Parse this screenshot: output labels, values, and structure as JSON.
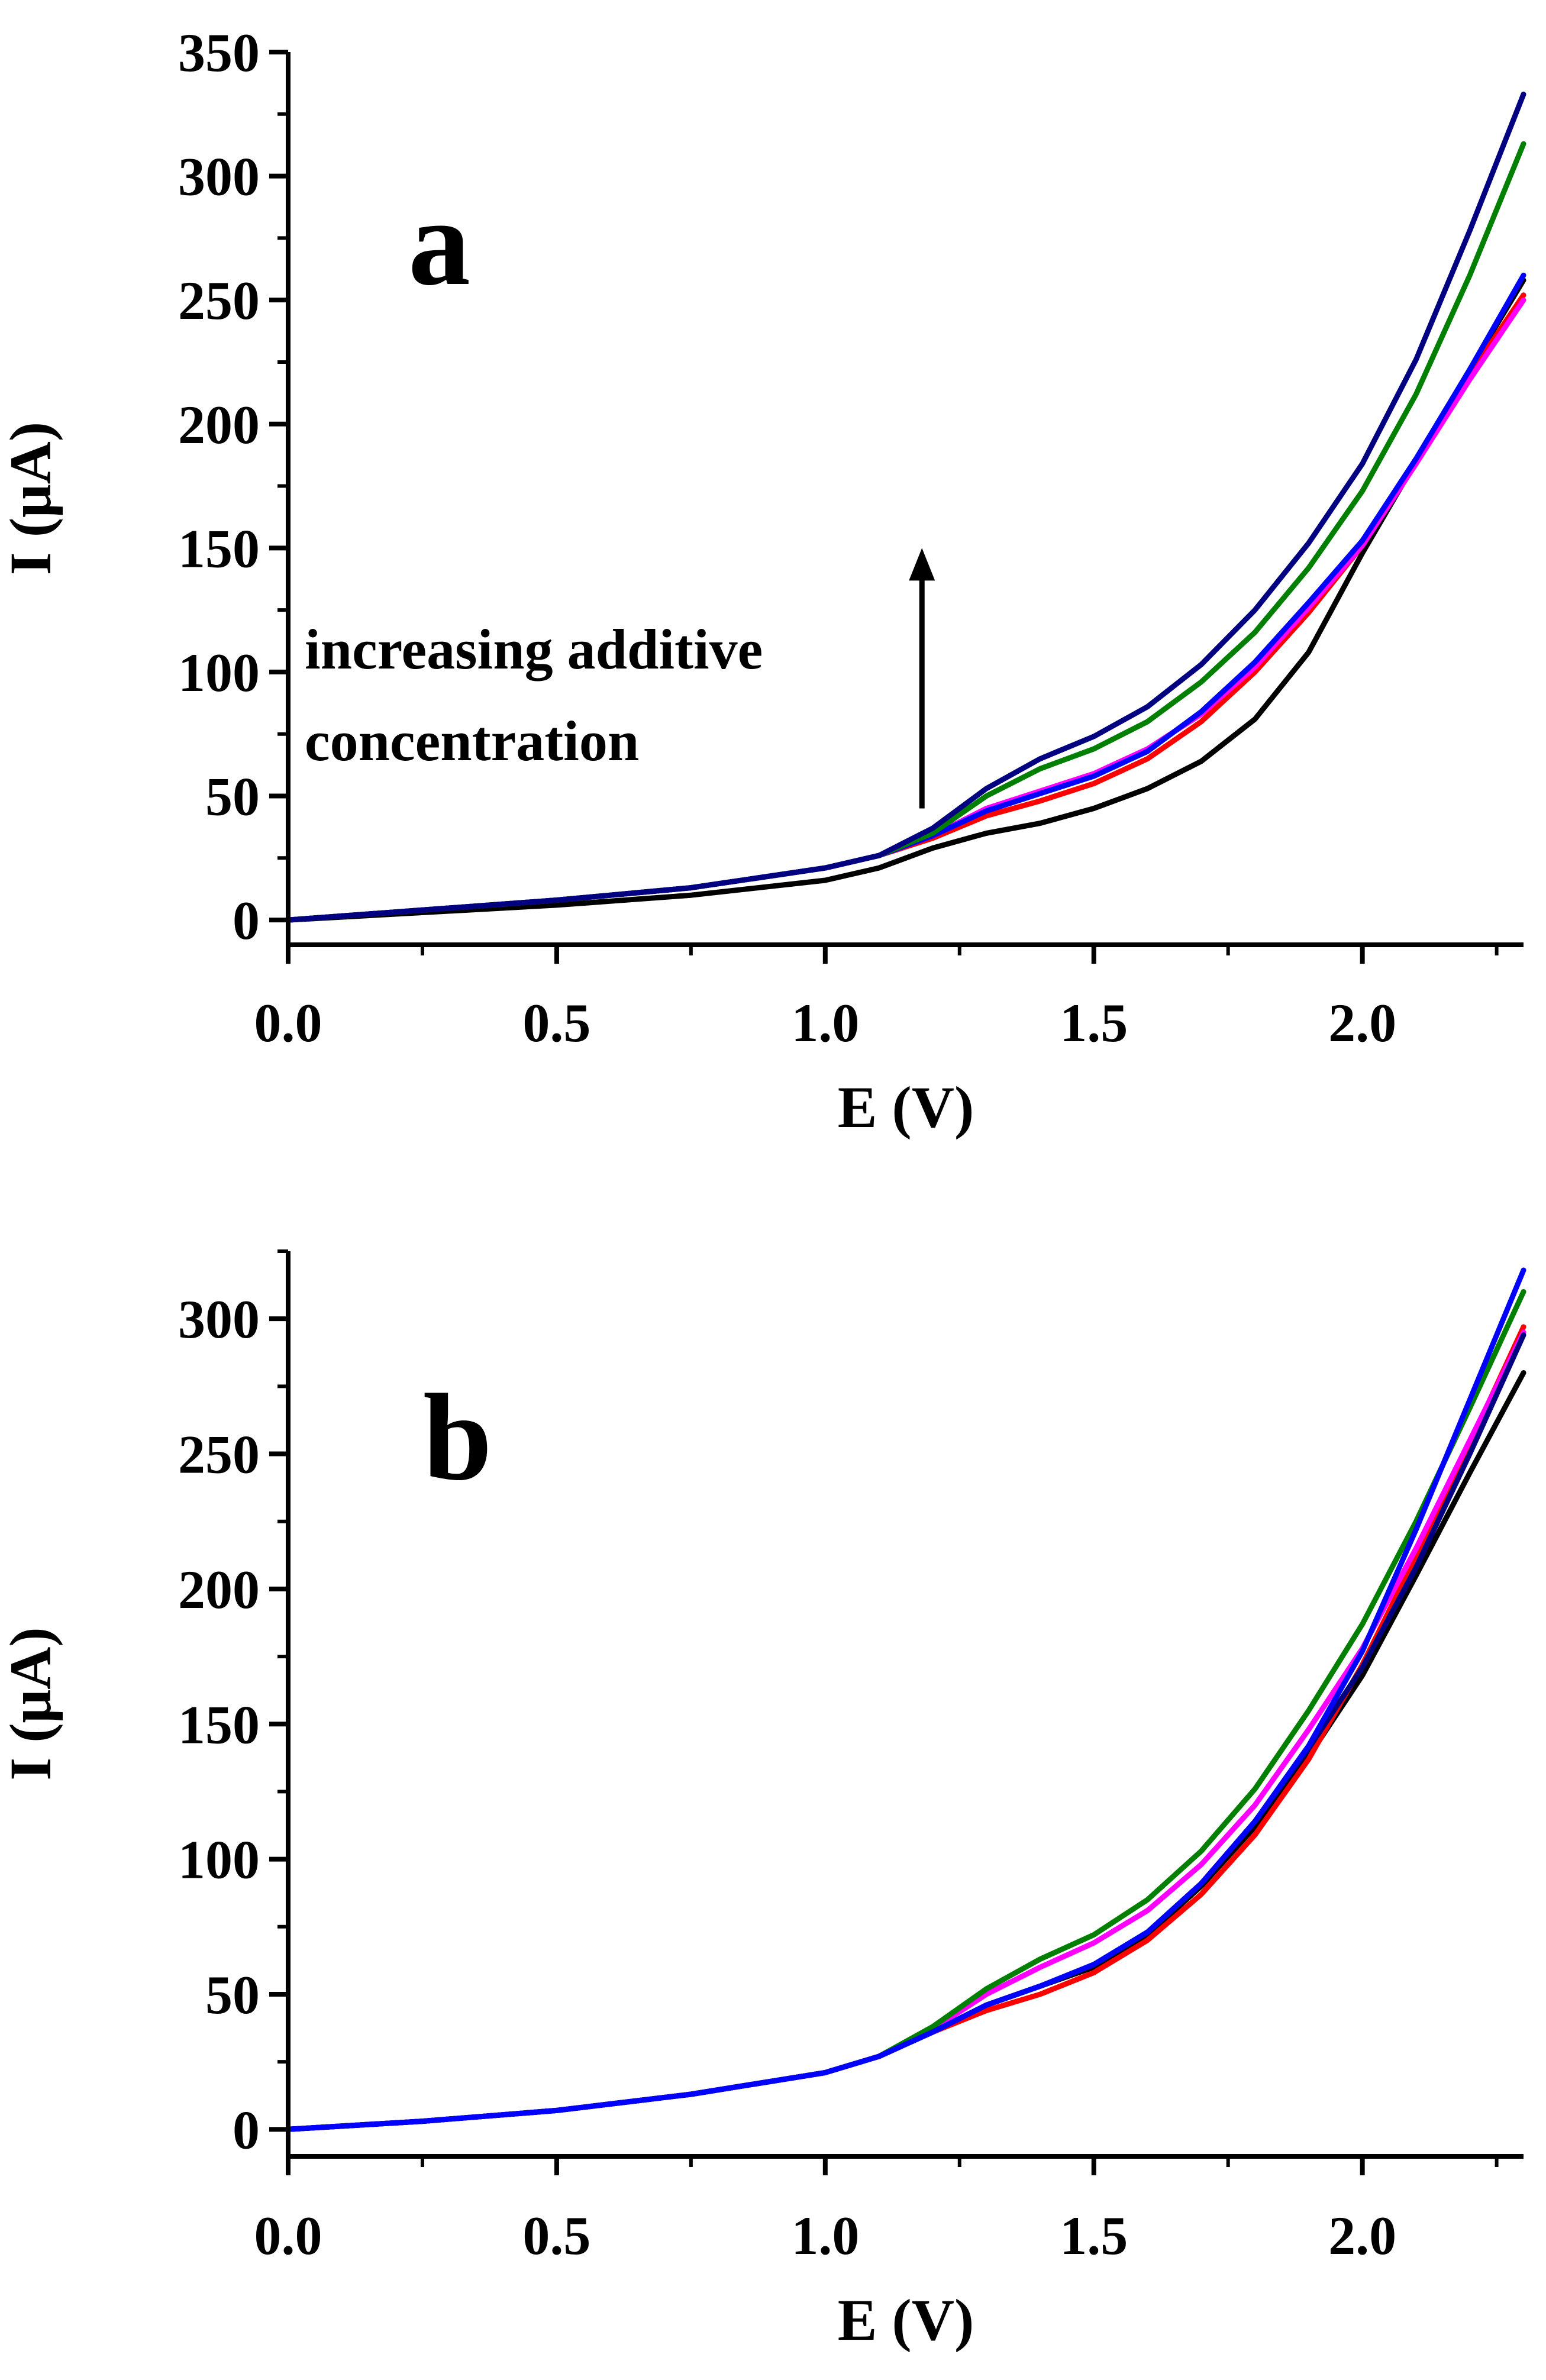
{
  "figure": {
    "annotation": {
      "line1": "increasing additive",
      "line2": "concentration"
    }
  },
  "chart_data": [
    {
      "type": "line",
      "panel_label": "a",
      "xlabel": "E (V)",
      "ylabel": "I (μA)",
      "xlim": [
        0.0,
        2.3
      ],
      "ylim": [
        -10,
        350
      ],
      "x_ticks": [
        0.0,
        0.5,
        1.0,
        1.5,
        2.0
      ],
      "x_tick_labels": [
        "0.0",
        "0.5",
        "1.0",
        "1.5",
        "2.0"
      ],
      "y_ticks": [
        0,
        50,
        100,
        150,
        200,
        250,
        300,
        350
      ],
      "y_tick_labels": [
        "0",
        "50",
        "100",
        "150",
        "200",
        "250",
        "300",
        "350"
      ],
      "annotation_arrow": {
        "x": 1.18,
        "y_from": 45,
        "y_to": 150
      },
      "series": [
        {
          "name": "black",
          "color": "#000000",
          "x": [
            0.0,
            0.25,
            0.5,
            0.75,
            1.0,
            1.1,
            1.2,
            1.3,
            1.4,
            1.5,
            1.6,
            1.7,
            1.8,
            1.9,
            2.0,
            2.1,
            2.2,
            2.3
          ],
          "y": [
            0,
            3,
            6,
            10,
            16,
            21,
            29,
            35,
            39,
            45,
            53,
            64,
            81,
            108,
            148,
            185,
            222,
            258
          ]
        },
        {
          "name": "red",
          "color": "#ff0000",
          "x": [
            0.0,
            0.25,
            0.5,
            0.75,
            1.0,
            1.1,
            1.2,
            1.3,
            1.4,
            1.5,
            1.6,
            1.7,
            1.8,
            1.9,
            2.0,
            2.1,
            2.2,
            2.3
          ],
          "y": [
            0,
            4,
            8,
            13,
            21,
            26,
            33,
            42,
            48,
            55,
            65,
            80,
            100,
            124,
            151,
            185,
            220,
            252
          ]
        },
        {
          "name": "magenta",
          "color": "#ff00ff",
          "x": [
            0.0,
            0.25,
            0.5,
            0.75,
            1.0,
            1.1,
            1.2,
            1.3,
            1.4,
            1.5,
            1.6,
            1.7,
            1.8,
            1.9,
            2.0,
            2.1,
            2.2,
            2.3
          ],
          "y": [
            0,
            4,
            8,
            13,
            21,
            26,
            34,
            45,
            52,
            59,
            69,
            83,
            102,
            126,
            151,
            184,
            218,
            250
          ]
        },
        {
          "name": "blue",
          "color": "#0000ff",
          "x": [
            0.0,
            0.25,
            0.5,
            0.75,
            1.0,
            1.1,
            1.2,
            1.3,
            1.4,
            1.5,
            1.6,
            1.7,
            1.8,
            1.9,
            2.0,
            2.1,
            2.2,
            2.3
          ],
          "y": [
            0,
            4,
            8,
            13,
            21,
            26,
            34,
            44,
            51,
            58,
            68,
            84,
            104,
            128,
            153,
            186,
            222,
            260
          ]
        },
        {
          "name": "green",
          "color": "#007f00",
          "x": [
            0.0,
            0.25,
            0.5,
            0.75,
            1.0,
            1.1,
            1.2,
            1.3,
            1.4,
            1.5,
            1.6,
            1.7,
            1.8,
            1.9,
            2.0,
            2.1,
            2.2,
            2.3
          ],
          "y": [
            0,
            4,
            8,
            13,
            21,
            26,
            35,
            50,
            61,
            69,
            80,
            96,
            116,
            142,
            173,
            212,
            260,
            313
          ]
        },
        {
          "name": "navy",
          "color": "#000080",
          "x": [
            0.0,
            0.25,
            0.5,
            0.75,
            1.0,
            1.1,
            1.2,
            1.3,
            1.4,
            1.5,
            1.6,
            1.7,
            1.8,
            1.9,
            2.0,
            2.1,
            2.2,
            2.3
          ],
          "y": [
            0,
            4,
            8,
            13,
            21,
            26,
            37,
            53,
            65,
            74,
            86,
            103,
            125,
            152,
            184,
            226,
            278,
            333
          ]
        }
      ]
    },
    {
      "type": "line",
      "panel_label": "b",
      "xlabel": "E (V)",
      "ylabel": "I (μA)",
      "xlim": [
        0.0,
        2.3
      ],
      "ylim": [
        -10,
        325
      ],
      "x_ticks": [
        0.0,
        0.5,
        1.0,
        1.5,
        2.0
      ],
      "x_tick_labels": [
        "0.0",
        "0.5",
        "1.0",
        "1.5",
        "2.0"
      ],
      "y_ticks": [
        0,
        50,
        100,
        150,
        200,
        250,
        300
      ],
      "y_tick_labels": [
        "0",
        "50",
        "100",
        "150",
        "200",
        "250",
        "300"
      ],
      "series": [
        {
          "name": "black",
          "color": "#000000",
          "x": [
            0.0,
            0.25,
            0.5,
            0.75,
            1.0,
            1.1,
            1.2,
            1.3,
            1.4,
            1.5,
            1.6,
            1.7,
            1.8,
            1.9,
            2.0,
            2.1,
            2.2,
            2.3
          ],
          "y": [
            0,
            3,
            7,
            13,
            21,
            27,
            36,
            46,
            53,
            60,
            72,
            90,
            112,
            138,
            168,
            205,
            243,
            280
          ]
        },
        {
          "name": "red",
          "color": "#ff0000",
          "x": [
            0.0,
            0.25,
            0.5,
            0.75,
            1.0,
            1.1,
            1.2,
            1.3,
            1.4,
            1.5,
            1.6,
            1.7,
            1.8,
            1.9,
            2.0,
            2.1,
            2.2,
            2.3
          ],
          "y": [
            0,
            3,
            7,
            13,
            21,
            27,
            36,
            44,
            50,
            58,
            70,
            87,
            109,
            137,
            172,
            212,
            254,
            297
          ]
        },
        {
          "name": "magenta",
          "color": "#ff00ff",
          "x": [
            0.0,
            0.25,
            0.5,
            0.75,
            1.0,
            1.1,
            1.2,
            1.3,
            1.4,
            1.5,
            1.6,
            1.7,
            1.8,
            1.9,
            2.0,
            2.1,
            2.2,
            2.3
          ],
          "y": [
            0,
            3,
            7,
            13,
            21,
            27,
            37,
            50,
            60,
            69,
            81,
            98,
            120,
            148,
            178,
            215,
            255,
            295
          ]
        },
        {
          "name": "green",
          "color": "#007f00",
          "x": [
            0.0,
            0.25,
            0.5,
            0.75,
            1.0,
            1.1,
            1.2,
            1.3,
            1.4,
            1.5,
            1.6,
            1.7,
            1.8,
            1.9,
            2.0,
            2.1,
            2.2,
            2.3
          ],
          "y": [
            0,
            3,
            7,
            13,
            21,
            27,
            38,
            52,
            63,
            72,
            85,
            103,
            126,
            155,
            187,
            225,
            267,
            310
          ]
        },
        {
          "name": "navy",
          "color": "#000080",
          "x": [
            0.0,
            0.25,
            0.5,
            0.75,
            1.0,
            1.1,
            1.2,
            1.3,
            1.4,
            1.5,
            1.6,
            1.7,
            1.8,
            1.9,
            2.0,
            2.1,
            2.2,
            2.3
          ],
          "y": [
            0,
            3,
            7,
            13,
            21,
            27,
            36,
            46,
            53,
            61,
            73,
            91,
            114,
            141,
            171,
            208,
            250,
            294
          ]
        },
        {
          "name": "blue",
          "color": "#0000ff",
          "x": [
            0.0,
            0.25,
            0.5,
            0.75,
            1.0,
            1.1,
            1.2,
            1.3,
            1.4,
            1.5,
            1.6,
            1.7,
            1.8,
            1.9,
            2.0,
            2.1,
            2.2,
            2.3
          ],
          "y": [
            0,
            3,
            7,
            13,
            21,
            27,
            36,
            46,
            53,
            61,
            73,
            91,
            114,
            142,
            177,
            222,
            270,
            318
          ]
        }
      ]
    }
  ]
}
